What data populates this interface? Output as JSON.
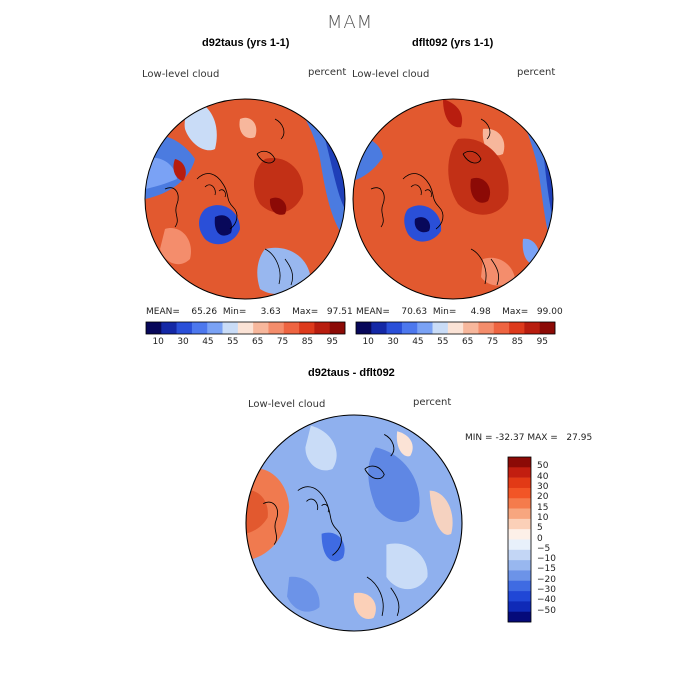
{
  "page": {
    "title": "MAM"
  },
  "panels": [
    {
      "title": "d92taus (yrs 1-1)",
      "field_label": "Low-level cloud",
      "units": "percent",
      "stats": {
        "mean_label": "MEAN=",
        "mean": "65.26",
        "min_label": "Min=",
        "min": "3.63",
        "max_label": "Max=",
        "max": "97.51"
      }
    },
    {
      "title": "dflt092 (yrs 1-1)",
      "field_label": "Low-level cloud",
      "units": "percent",
      "stats": {
        "mean_label": "MEAN=",
        "mean": "70.63",
        "min_label": "Min=",
        "min": "4.98",
        "max_label": "Max=",
        "max": "99.00"
      }
    },
    {
      "title": "d92taus - dflt092",
      "field_label": "Low-level cloud",
      "units": "percent",
      "stats": {
        "min_label": "MIN =",
        "min": "-32.37",
        "max_label": "MAX =",
        "max": "27.95"
      }
    }
  ],
  "colorbar_abs": {
    "colors": [
      "#08085a",
      "#1428a6",
      "#2a4fd8",
      "#4d78ee",
      "#7aa2f5",
      "#c9dcf7",
      "#fbe3d6",
      "#f7b79c",
      "#f48d6c",
      "#ee6441",
      "#dd3a1c",
      "#b81d0f",
      "#8c0a06"
    ],
    "tick_labels": [
      "10",
      "30",
      "45",
      "55",
      "65",
      "75",
      "85",
      "95"
    ]
  },
  "colorbar_diff": {
    "colors": [
      "#8c0a06",
      "#c21e10",
      "#e23a16",
      "#f25526",
      "#f57b4c",
      "#f7a67f",
      "#fbd0b8",
      "#fdf0e8",
      "#e8f0fb",
      "#c3d6f5",
      "#98b7ef",
      "#6c93e8",
      "#3f6be2",
      "#2047d6",
      "#0f2ab7",
      "#050a7a"
    ],
    "tick_labels": [
      "50",
      "40",
      "30",
      "20",
      "15",
      "10",
      "5",
      "0",
      "−5",
      "−10",
      "−15",
      "−20",
      "−30",
      "−40",
      "−50"
    ]
  },
  "colors": {
    "red_field": "#d8452a",
    "blue_field": "#4b7be0",
    "coastline": "#000000"
  }
}
